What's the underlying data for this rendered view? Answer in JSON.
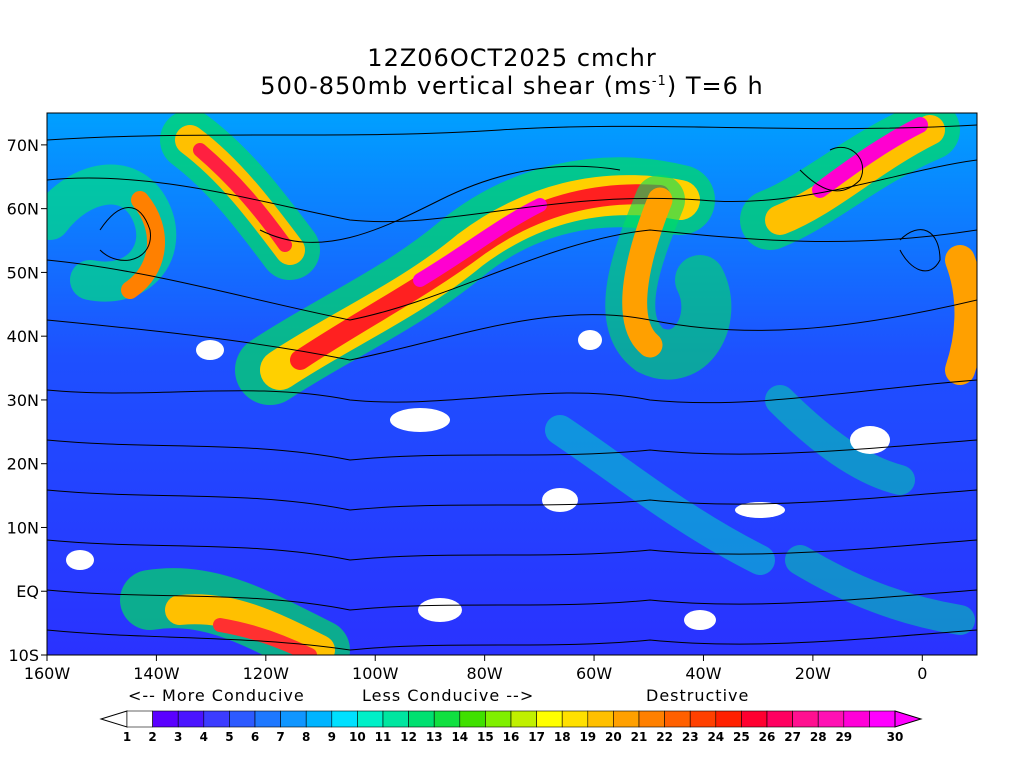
{
  "title_line1": "12Z06OCT2025 cmchr",
  "title_line2_prefix": "500-850mb vertical shear (ms",
  "title_line2_sup": "-1",
  "title_line2_suffix": ") T=6 h",
  "map": {
    "lon_range": [
      -160,
      10
    ],
    "lat_range": [
      -10,
      75
    ],
    "lat_labels": [
      "70N",
      "60N",
      "50N",
      "40N",
      "30N",
      "20N",
      "10N",
      "EQ",
      "10S"
    ],
    "lon_labels": [
      "160W",
      "140W",
      "120W",
      "100W",
      "80W",
      "60W",
      "40W",
      "20W",
      "0"
    ]
  },
  "legend": {
    "more_conducive": "<-- More Conducive",
    "less_conducive": "Less Conducive -->",
    "destructive": "Destructive",
    "values": [
      "1",
      "2",
      "3",
      "4",
      "5",
      "6",
      "7",
      "8",
      "9",
      "10",
      "11",
      "12",
      "13",
      "14",
      "15",
      "16",
      "17",
      "18",
      "19",
      "20",
      "21",
      "22",
      "23",
      "24",
      "25",
      "26",
      "27",
      "28",
      "29",
      "30"
    ],
    "colors": [
      "#ffffff",
      "#5a00ff",
      "#4b14ff",
      "#3c3cff",
      "#2d5aff",
      "#1e78ff",
      "#1096ff",
      "#00b4ff",
      "#00e0ff",
      "#00f0c8",
      "#00e6a0",
      "#00e070",
      "#10e040",
      "#40e000",
      "#80f000",
      "#c0f000",
      "#ffff00",
      "#ffe000",
      "#ffc000",
      "#ffa000",
      "#ff8000",
      "#ff6000",
      "#ff4000",
      "#ff2000",
      "#ff0030",
      "#ff0060",
      "#ff1090",
      "#ff10b4",
      "#ff00d8",
      "#ff00ff"
    ]
  }
}
